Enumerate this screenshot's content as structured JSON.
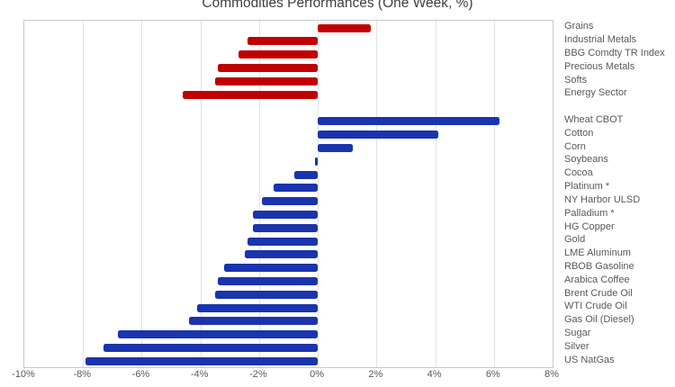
{
  "chart_data": {
    "type": "bar",
    "orientation": "horizontal",
    "title": "Commodities Performances (One Week, %)",
    "xlabel": "",
    "ylabel": "",
    "xlim": [
      -10,
      8
    ],
    "x_tick_values": [
      -10,
      -8,
      -6,
      -4,
      -2,
      0,
      2,
      4,
      6,
      8
    ],
    "x_tick_labels": [
      "-10%",
      "-8%",
      "-6%",
      "-4%",
      "-2%",
      "0%",
      "2%",
      "4%",
      "6%",
      "8%"
    ],
    "grid": true,
    "legend": "none",
    "value_unit": "%",
    "series": [
      {
        "name": "Sector Indices",
        "color": "#c00000",
        "data": [
          {
            "label": "Grains",
            "value": 1.8
          },
          {
            "label": "Industrial Metals",
            "value": -2.4
          },
          {
            "label": "BBG Comdty TR Index",
            "value": -2.7
          },
          {
            "label": "Precious Metals",
            "value": -3.4
          },
          {
            "label": "Softs",
            "value": -3.5
          },
          {
            "label": "Energy Sector",
            "value": -4.6
          }
        ]
      },
      {
        "name": "Individual Commodities",
        "color": "#1a34ae",
        "data": [
          {
            "label": "Wheat CBOT",
            "value": 6.2
          },
          {
            "label": "Cotton",
            "value": 4.1
          },
          {
            "label": "Corn",
            "value": 1.2
          },
          {
            "label": "Soybeans",
            "value": -0.1
          },
          {
            "label": "Cocoa",
            "value": -0.8
          },
          {
            "label": "Platinum *",
            "value": -1.5
          },
          {
            "label": "NY Harbor ULSD",
            "value": -1.9
          },
          {
            "label": "Palladium *",
            "value": -2.2
          },
          {
            "label": "HG Copper",
            "value": -2.2
          },
          {
            "label": "Gold",
            "value": -2.4
          },
          {
            "label": "LME Aluminum",
            "value": -2.5
          },
          {
            "label": "RBOB Gasoline",
            "value": -3.2
          },
          {
            "label": "Arabica Coffee",
            "value": -3.4
          },
          {
            "label": "Brent Crude Oil",
            "value": -3.5
          },
          {
            "label": "WTI Crude Oil",
            "value": -4.1
          },
          {
            "label": "Gas Oil (Diesel)",
            "value": -4.4
          },
          {
            "label": "Sugar",
            "value": -6.8
          },
          {
            "label": "Silver",
            "value": -7.3
          },
          {
            "label": "US NatGas",
            "value": -7.9
          }
        ]
      }
    ]
  }
}
